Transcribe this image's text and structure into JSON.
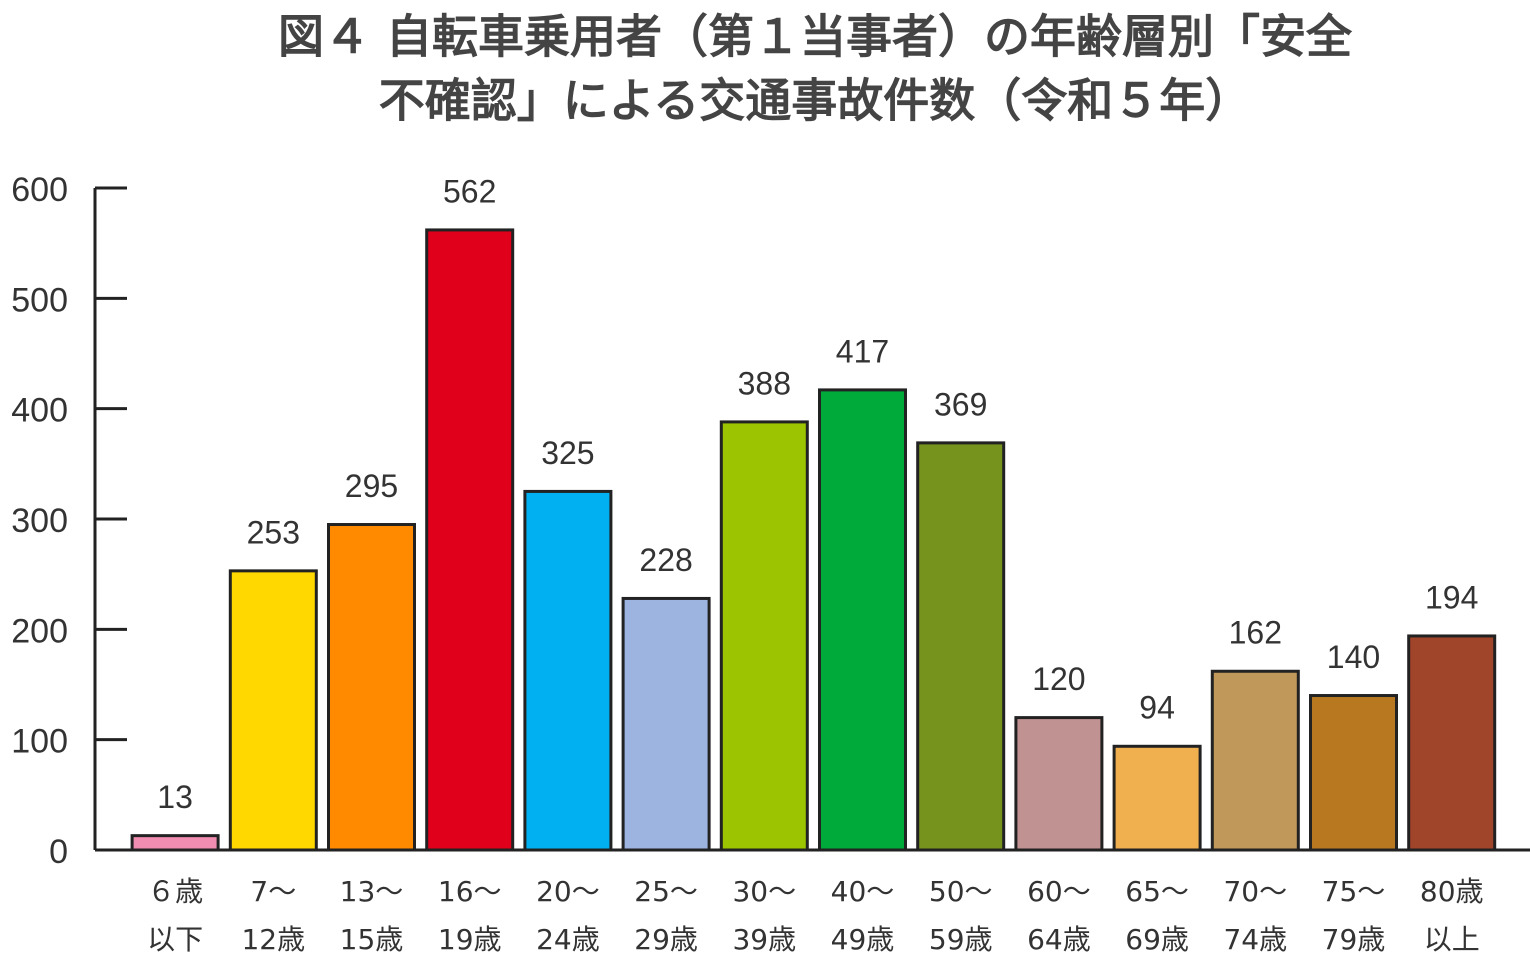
{
  "chart_data": {
    "type": "bar",
    "title": [
      "図４ 自転車乗用者（第１当事者）の年齢層別「安全",
      "不確認」による交通事故件数（令和５年）"
    ],
    "categories": [
      [
        "６歳",
        "以下"
      ],
      [
        "7～",
        "12歳"
      ],
      [
        "13～",
        "15歳"
      ],
      [
        "16～",
        "19歳"
      ],
      [
        "20～",
        "24歳"
      ],
      [
        "25～",
        "29歳"
      ],
      [
        "30～",
        "39歳"
      ],
      [
        "40～",
        "49歳"
      ],
      [
        "50～",
        "59歳"
      ],
      [
        "60～",
        "64歳"
      ],
      [
        "65～",
        "69歳"
      ],
      [
        "70～",
        "74歳"
      ],
      [
        "75～",
        "79歳"
      ],
      [
        "80歳",
        "以上"
      ]
    ],
    "values": [
      13,
      253,
      295,
      562,
      325,
      228,
      388,
      417,
      369,
      120,
      94,
      162,
      140,
      194
    ],
    "colors": [
      "#f08db0",
      "#ffd800",
      "#ff8a00",
      "#e0001b",
      "#00b0f0",
      "#9db3e0",
      "#9dc400",
      "#00aa3a",
      "#76931e",
      "#c09292",
      "#f0b050",
      "#c0985a",
      "#b87820",
      "#a0442a"
    ],
    "ylim": [
      0,
      600
    ],
    "yticks": [
      0,
      100,
      200,
      300,
      400,
      500,
      600
    ]
  }
}
